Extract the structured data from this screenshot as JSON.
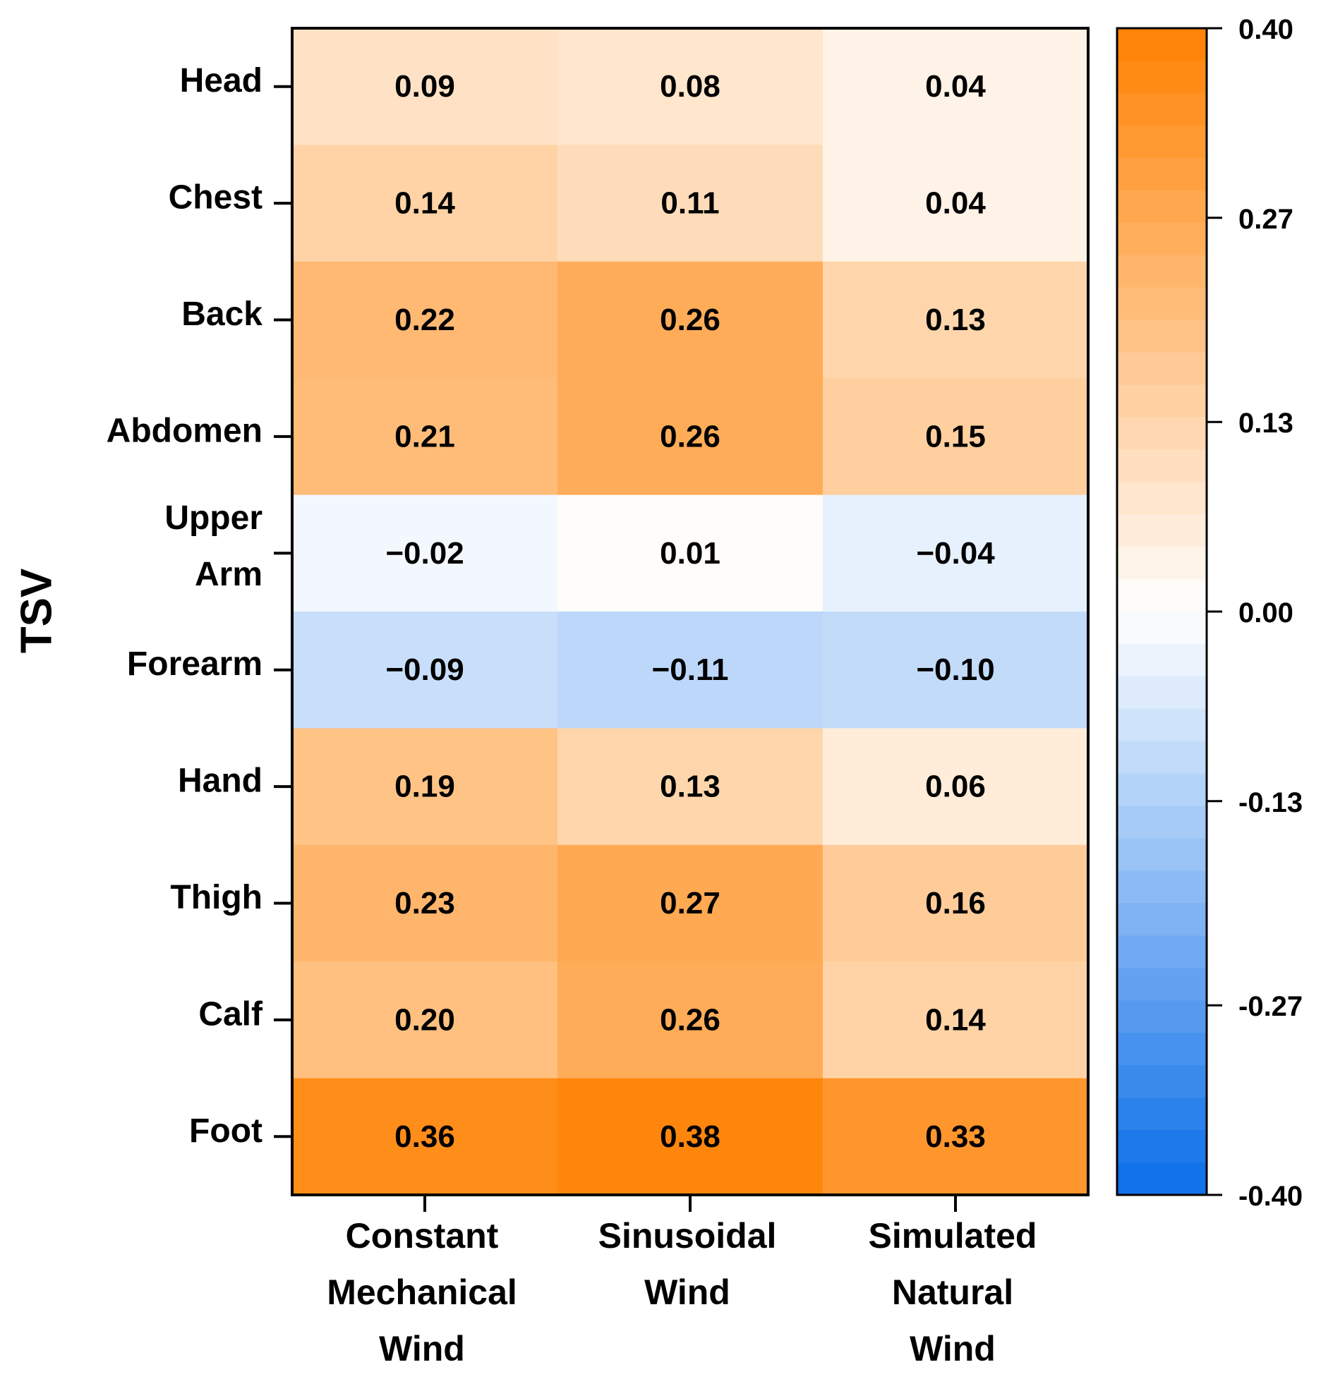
{
  "chart_data": {
    "type": "heatmap",
    "title": "",
    "ylabel": "TSV",
    "rows": [
      "Head",
      "Chest",
      "Back",
      "Abdomen",
      "Upper Arm",
      "Forearm",
      "Hand",
      "Thigh",
      "Calf",
      "Foot"
    ],
    "row_label_lines": [
      [
        "Head"
      ],
      [
        "Chest"
      ],
      [
        "Back"
      ],
      [
        "Abdomen"
      ],
      [
        "Upper",
        "Arm"
      ],
      [
        "Forearm"
      ],
      [
        "Hand"
      ],
      [
        "Thigh"
      ],
      [
        "Calf"
      ],
      [
        "Foot"
      ]
    ],
    "columns": [
      "Constant Mechanical Wind",
      "Sinusoidal Wind",
      "Simulated Natural Wind"
    ],
    "column_label_lines": [
      [
        "Constant",
        "Mechanical",
        "Wind"
      ],
      [
        "Sinusoidal",
        "Wind"
      ],
      [
        "Simulated",
        "Natural",
        "Wind"
      ]
    ],
    "values": [
      [
        0.09,
        0.08,
        0.04
      ],
      [
        0.14,
        0.11,
        0.04
      ],
      [
        0.22,
        0.26,
        0.13
      ],
      [
        0.21,
        0.26,
        0.15
      ],
      [
        -0.02,
        0.01,
        -0.04
      ],
      [
        -0.09,
        -0.11,
        -0.1
      ],
      [
        0.19,
        0.13,
        0.06
      ],
      [
        0.23,
        0.27,
        0.16
      ],
      [
        0.2,
        0.26,
        0.14
      ],
      [
        0.36,
        0.38,
        0.33
      ]
    ],
    "value_labels": [
      [
        "0.09",
        "0.08",
        "0.04"
      ],
      [
        "0.14",
        "0.11",
        "0.04"
      ],
      [
        "0.22",
        "0.26",
        "0.13"
      ],
      [
        "0.21",
        "0.26",
        "0.15"
      ],
      [
        "−0.02",
        "0.01",
        "−0.04"
      ],
      [
        "−0.09",
        "−0.11",
        "−0.10"
      ],
      [
        "0.19",
        "0.13",
        "0.06"
      ],
      [
        "0.23",
        "0.27",
        "0.16"
      ],
      [
        "0.20",
        "0.26",
        "0.14"
      ],
      [
        "0.36",
        "0.38",
        "0.33"
      ]
    ],
    "colorbar": {
      "range": [
        -0.4,
        0.4
      ],
      "ticks": [
        0.4,
        0.27,
        0.13,
        0.0,
        -0.13,
        -0.27,
        -0.4
      ],
      "tick_labels": [
        "0.40",
        "0.27",
        "0.13",
        "0.00",
        "-0.13",
        "-0.27",
        "-0.40"
      ],
      "steps": 36,
      "positive_color": "#ff8000",
      "negative_color": "#0a6ee8",
      "zero_color": "#ffffff"
    }
  }
}
